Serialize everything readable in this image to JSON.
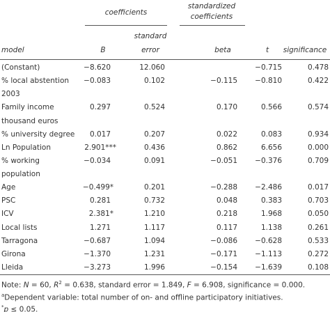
{
  "header": {
    "group1": "coefficients",
    "group2": [
      "standardized",
      "coefficients"
    ],
    "columns": {
      "model": "model",
      "b": "B",
      "se": [
        "standard",
        "error"
      ],
      "beta": "beta",
      "t": "t",
      "sig": "significance"
    }
  },
  "table": {
    "rows": [
      {
        "label": [
          "(Constant)"
        ],
        "b": "−8.620",
        "se": "12.060",
        "beta": null,
        "t": "−0.715",
        "sig": "0.478"
      },
      {
        "label": [
          "% local abstention",
          "2003"
        ],
        "b": "−0.083",
        "se": "0.102",
        "beta": "−0.115",
        "t": "−0.810",
        "sig": "0.422"
      },
      {
        "label": [
          "Family income",
          "thousand euros"
        ],
        "b": "0.297",
        "se": "0.524",
        "beta": "0.170",
        "t": "0.566",
        "sig": "0.574"
      },
      {
        "label": [
          "% university degree"
        ],
        "b": "0.017",
        "se": "0.207",
        "beta": "0.022",
        "t": "0.083",
        "sig": "0.934"
      },
      {
        "label": [
          "Ln Population"
        ],
        "b": "2.901***",
        "se": "0.436",
        "beta": "0.862",
        "t": "6.656",
        "sig": "0.000"
      },
      {
        "label": [
          "% working",
          "population"
        ],
        "b": "−0.034",
        "se": "0.091",
        "beta": "−0.051",
        "t": "−0.376",
        "sig": "0.709"
      },
      {
        "label": [
          "Age"
        ],
        "b": "−0.499*",
        "se": "0.201",
        "beta": "−0.288",
        "t": "−2.486",
        "sig": "0.017"
      },
      {
        "label": [
          "PSC"
        ],
        "b": "0.281",
        "se": "0.732",
        "beta": "0.048",
        "t": "0.383",
        "sig": "0.703"
      },
      {
        "label": [
          "ICV"
        ],
        "b": "2.381*",
        "se": "1.210",
        "beta": "0.218",
        "t": "1.968",
        "sig": "0.050"
      },
      {
        "label": [
          "Local lists"
        ],
        "b": "1.271",
        "se": "1.117",
        "beta": "0.117",
        "t": "1.138",
        "sig": "0.261"
      },
      {
        "label": [
          "Tarragona"
        ],
        "b": "−0.687",
        "se": "1.094",
        "beta": "−0.086",
        "t": "−0.628",
        "sig": "0.533"
      },
      {
        "label": [
          "Girona"
        ],
        "b": "−1.370",
        "se": "1.231",
        "beta": "−0.171",
        "t": "−1.113",
        "sig": "0.272"
      },
      {
        "label": [
          "Lleida"
        ],
        "b": "−3.273",
        "se": "1.996",
        "beta": "−0.154",
        "t": "−1.639",
        "sig": "0.108"
      }
    ]
  },
  "notes": {
    "note": [
      "Note: ",
      "N",
      " = 60, ",
      "R",
      "2",
      " = 0.638, standard error = 1.849, ",
      "F",
      " = 6.908, significance = 0.000."
    ],
    "dependent": [
      "a",
      "Dependent variable: total number of on- and offline participatory initiatives."
    ],
    "significance": [
      "*",
      "p",
      " ≤ 0.05."
    ]
  }
}
